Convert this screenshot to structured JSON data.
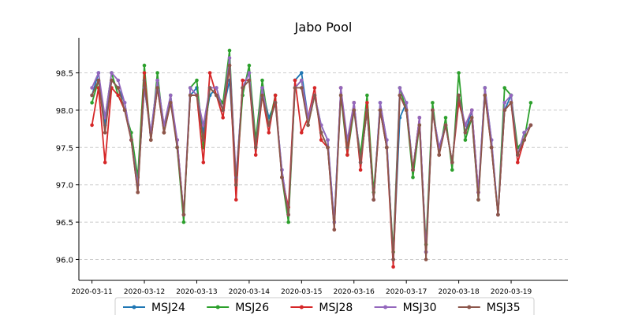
{
  "chart_data": {
    "type": "line",
    "title": "Jabo Pool",
    "xlabel": "",
    "ylabel": "",
    "x_ticks": [
      "2020-03-11",
      "2020-03-12",
      "2020-03-13",
      "2020-03-14",
      "2020-03-15",
      "2020-03-16",
      "2020-03-17",
      "2020-03-18",
      "2020-03-19"
    ],
    "y_ticks": [
      "96.0",
      "96.5",
      "97.0",
      "97.5",
      "98.0",
      "98.5"
    ],
    "xlim": [
      "2020-03-10 18:00",
      "2020-03-20 02:00"
    ],
    "ylim": [
      95.72,
      98.97
    ],
    "grid": "y-dashed",
    "legend": "bottom-center",
    "x": [
      "2020-03-11 00:00",
      "2020-03-11 03:00",
      "2020-03-11 06:00",
      "2020-03-11 09:00",
      "2020-03-11 12:00",
      "2020-03-11 15:00",
      "2020-03-11 18:00",
      "2020-03-11 21:00",
      "2020-03-12 00:00",
      "2020-03-12 03:00",
      "2020-03-12 06:00",
      "2020-03-12 09:00",
      "2020-03-12 12:00",
      "2020-03-12 15:00",
      "2020-03-12 18:00",
      "2020-03-12 21:00",
      "2020-03-13 00:00",
      "2020-03-13 03:00",
      "2020-03-13 06:00",
      "2020-03-13 09:00",
      "2020-03-13 12:00",
      "2020-03-13 15:00",
      "2020-03-13 18:00",
      "2020-03-13 21:00",
      "2020-03-14 00:00",
      "2020-03-14 03:00",
      "2020-03-14 06:00",
      "2020-03-14 09:00",
      "2020-03-14 12:00",
      "2020-03-14 15:00",
      "2020-03-14 18:00",
      "2020-03-14 21:00",
      "2020-03-15 00:00",
      "2020-03-15 03:00",
      "2020-03-15 06:00",
      "2020-03-15 09:00",
      "2020-03-15 12:00",
      "2020-03-15 15:00",
      "2020-03-15 18:00",
      "2020-03-15 21:00",
      "2020-03-16 00:00",
      "2020-03-16 03:00",
      "2020-03-16 06:00",
      "2020-03-16 09:00",
      "2020-03-16 12:00",
      "2020-03-16 15:00",
      "2020-03-16 18:00",
      "2020-03-16 21:00",
      "2020-03-17 00:00",
      "2020-03-17 03:00",
      "2020-03-17 06:00",
      "2020-03-17 09:00",
      "2020-03-17 12:00",
      "2020-03-17 15:00",
      "2020-03-17 18:00",
      "2020-03-17 21:00",
      "2020-03-18 00:00",
      "2020-03-18 03:00",
      "2020-03-18 06:00",
      "2020-03-18 09:00",
      "2020-03-18 12:00",
      "2020-03-18 15:00",
      "2020-03-18 18:00",
      "2020-03-18 21:00",
      "2020-03-19 00:00",
      "2020-03-19 03:00",
      "2020-03-19 06:00",
      "2020-03-19 09:00"
    ],
    "series": [
      {
        "name": "MSJ24",
        "color": "#1f77b4",
        "values": [
          98.2,
          98.5,
          97.8,
          98.4,
          98.3,
          98.1,
          97.6,
          97.0,
          98.3,
          97.7,
          98.4,
          97.8,
          98.1,
          97.6,
          96.6,
          98.2,
          98.3,
          97.7,
          98.2,
          98.3,
          98.0,
          98.4,
          97.1,
          98.3,
          98.5,
          97.5,
          98.3,
          97.9,
          98.1,
          97.2,
          96.6,
          98.4,
          98.5,
          97.9,
          98.2,
          97.8,
          97.6,
          96.5,
          98.3,
          97.5,
          98.1,
          97.3,
          98.0,
          96.8,
          98.1,
          97.6,
          96.0,
          97.9,
          98.1,
          97.2,
          97.9,
          96.1,
          98.0,
          97.5,
          97.8,
          97.3,
          98.2,
          97.7,
          98.0,
          96.9,
          98.3,
          97.6,
          96.6,
          98.0,
          98.2,
          97.4,
          97.7,
          97.8
        ]
      },
      {
        "name": "MSJ26",
        "color": "#2ca02c",
        "values": [
          98.1,
          98.4,
          97.9,
          98.5,
          98.2,
          98.0,
          97.7,
          97.1,
          98.6,
          97.6,
          98.5,
          97.7,
          98.2,
          97.5,
          96.5,
          98.3,
          98.4,
          97.5,
          98.3,
          98.2,
          98.1,
          98.8,
          97.0,
          98.2,
          98.6,
          97.6,
          98.4,
          97.8,
          98.2,
          97.1,
          96.5,
          98.3,
          98.4,
          97.8,
          98.2,
          97.7,
          97.5,
          96.5,
          98.2,
          97.4,
          98.0,
          97.4,
          98.2,
          96.9,
          98.0,
          97.5,
          96.1,
          98.3,
          98.0,
          97.1,
          97.8,
          96.2,
          98.1,
          97.4,
          97.9,
          97.2,
          98.5,
          97.6,
          97.9,
          96.8,
          98.3,
          97.5,
          96.6,
          98.3,
          98.2,
          97.5,
          97.6,
          98.1
        ]
      },
      {
        "name": "MSJ28",
        "color": "#d62728",
        "values": [
          97.8,
          98.3,
          97.3,
          98.3,
          98.2,
          98.0,
          97.6,
          96.9,
          98.5,
          97.6,
          98.3,
          97.7,
          98.1,
          97.6,
          96.6,
          98.2,
          98.2,
          97.3,
          98.5,
          98.2,
          97.9,
          98.6,
          96.8,
          98.4,
          98.4,
          97.4,
          98.2,
          97.7,
          98.2,
          97.1,
          96.7,
          98.4,
          97.7,
          97.9,
          98.3,
          97.6,
          97.5,
          96.4,
          98.3,
          97.4,
          98.1,
          97.2,
          98.1,
          96.8,
          98.0,
          97.5,
          95.9,
          98.2,
          98.0,
          97.2,
          97.9,
          96.1,
          98.0,
          97.4,
          97.8,
          97.3,
          98.1,
          97.8,
          98.0,
          96.9,
          98.2,
          97.5,
          96.6,
          98.0,
          98.1,
          97.3,
          97.6,
          97.8
        ]
      },
      {
        "name": "MSJ30",
        "color": "#9467bd",
        "values": [
          98.3,
          98.5,
          97.9,
          98.5,
          98.4,
          98.1,
          97.6,
          97.0,
          98.3,
          97.7,
          98.4,
          97.8,
          98.2,
          97.6,
          96.6,
          98.3,
          98.2,
          97.8,
          98.3,
          98.3,
          98.0,
          98.7,
          97.1,
          98.3,
          98.5,
          97.5,
          98.3,
          97.8,
          98.1,
          97.2,
          96.6,
          98.3,
          98.4,
          97.9,
          98.2,
          97.8,
          97.6,
          96.5,
          98.3,
          97.6,
          98.1,
          97.3,
          98.0,
          96.8,
          98.1,
          97.6,
          96.0,
          98.3,
          98.1,
          97.2,
          97.9,
          96.1,
          98.0,
          97.5,
          97.8,
          97.3,
          98.2,
          97.8,
          98.0,
          96.9,
          98.3,
          97.6,
          96.6,
          98.1,
          98.2,
          97.4,
          97.7,
          97.8
        ]
      },
      {
        "name": "MSJ35",
        "color": "#8c564b",
        "values": [
          98.2,
          98.4,
          97.7,
          98.4,
          98.3,
          98.0,
          97.6,
          96.9,
          98.4,
          97.6,
          98.3,
          97.7,
          98.1,
          97.5,
          96.6,
          98.2,
          98.2,
          97.6,
          98.3,
          98.2,
          98.0,
          98.6,
          97.0,
          98.3,
          98.4,
          97.5,
          98.2,
          97.8,
          98.1,
          97.1,
          96.6,
          98.3,
          98.3,
          97.8,
          98.2,
          97.7,
          97.5,
          96.4,
          98.2,
          97.5,
          98.0,
          97.3,
          98.0,
          96.8,
          98.0,
          97.5,
          96.0,
          98.2,
          98.0,
          97.2,
          97.8,
          96.0,
          98.0,
          97.4,
          97.8,
          97.3,
          98.2,
          97.7,
          97.9,
          96.8,
          98.2,
          97.5,
          96.6,
          98.0,
          98.1,
          97.4,
          97.6,
          97.8
        ]
      }
    ]
  }
}
